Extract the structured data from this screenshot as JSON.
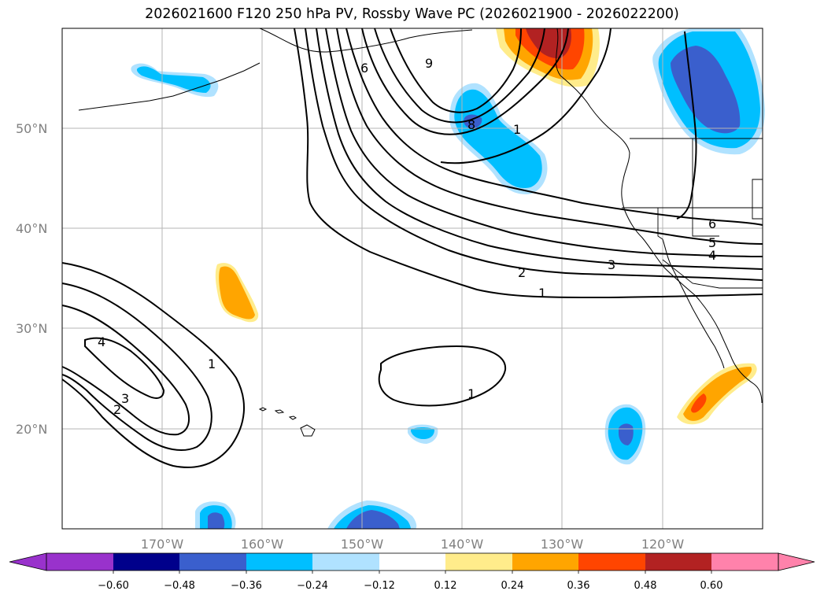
{
  "title": "2026021600 F120 250 hPa PV, Rossby Wave PC (2026021900 - 2026022200)",
  "latitude_labels": [
    "50°N",
    "40°N",
    "30°N",
    "20°N"
  ],
  "longitude_labels": [
    "170°W",
    "160°W",
    "150°W",
    "140°W",
    "130°W",
    "120°W"
  ],
  "contour_labels": [
    "9",
    "6",
    "8",
    "1",
    "6",
    "5",
    "4",
    "3",
    "2",
    "1",
    "1",
    "4",
    "3",
    "2",
    "1"
  ],
  "colorbar": {
    "tick_labels": [
      "−0.60",
      "−0.48",
      "−0.36",
      "−0.24",
      "−0.12",
      "0.12",
      "0.24",
      "0.36",
      "0.48",
      "0.60"
    ],
    "colors": [
      "#9932cc",
      "#00008b",
      "#3a5fcd",
      "#00bfff",
      "#b0e2ff",
      "#ffffff",
      "#ffec8b",
      "#ffa500",
      "#ff4500",
      "#b22222",
      "#ff82ab"
    ]
  },
  "map": {
    "extent_lon": [
      -180,
      -110
    ],
    "extent_lat": [
      10,
      60
    ],
    "projection": "PlateCarree",
    "gridlines": true
  }
}
